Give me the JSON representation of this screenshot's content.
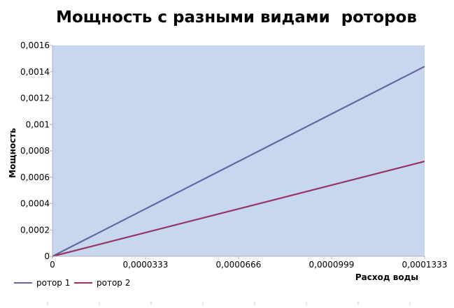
{
  "chart_data": {
    "type": "line",
    "title": "Мощность с разными видами  роторов",
    "xlabel": "Расход воды",
    "ylabel": "Мощность",
    "x": [
      0,
      0.0001333
    ],
    "x_tick_labels": [
      "0",
      "0,0000333",
      "0,0000666",
      "0,0000999",
      "0,0001333"
    ],
    "y_tick_labels": [
      "0",
      "0,0002",
      "0,0004",
      "0,0006",
      "0,0008",
      "0,001",
      "0,0012",
      "0,0014",
      "0,0016"
    ],
    "xlim": [
      0,
      0.0001333
    ],
    "ylim": [
      0,
      0.0016
    ],
    "series": [
      {
        "name": "ротор 1",
        "values": [
          0,
          0.00144
        ],
        "color": "#6666a0"
      },
      {
        "name": "ротор 2",
        "values": [
          0,
          0.00072
        ],
        "color": "#993366"
      }
    ],
    "plot_background": "#c6d7ef",
    "grid": false,
    "legend_position": "bottom-left"
  }
}
